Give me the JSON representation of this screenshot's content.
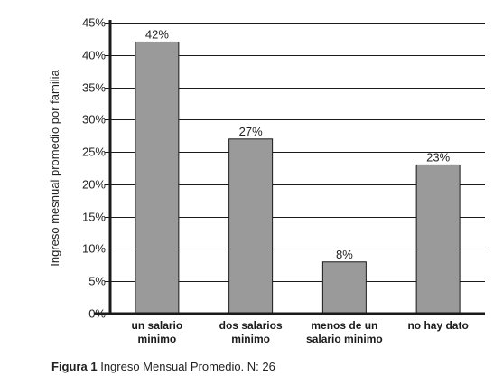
{
  "chart_data": {
    "type": "bar",
    "ylabel": "Ingreso mesnual promedio por familia",
    "categories": [
      [
        "un salario",
        "minimo"
      ],
      [
        "dos salarios",
        "minimo"
      ],
      [
        "menos de un",
        "salario minimo"
      ],
      [
        "no hay dato"
      ]
    ],
    "values": [
      42,
      27,
      8,
      23
    ],
    "value_labels": [
      "42%",
      "27%",
      "8%",
      "23%"
    ],
    "yticks": [
      "0%",
      "5%",
      "10%",
      "15%",
      "20%",
      "25%",
      "30%",
      "35%",
      "40%",
      "45%"
    ],
    "ylim": [
      0,
      45
    ],
    "grid": true,
    "bar_color": "#9a9a9a"
  },
  "caption": {
    "label": "Figura 1",
    "text": "Ingreso Mensual Promedio. N: 26"
  }
}
